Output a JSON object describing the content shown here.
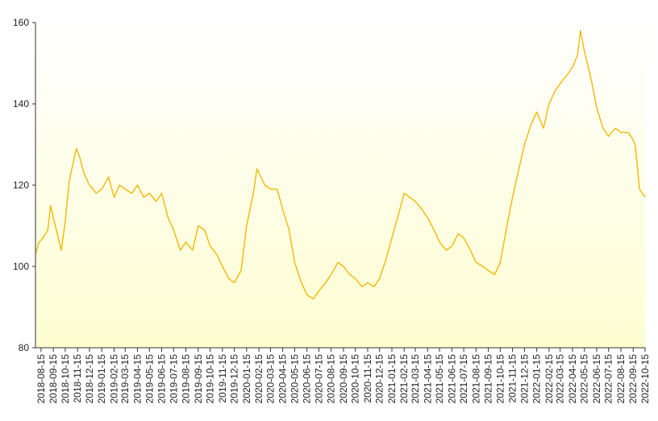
{
  "chart_data": {
    "type": "line",
    "title": "",
    "xlabel": "",
    "ylabel": "",
    "ylim": [
      80,
      160
    ],
    "y_ticks": [
      80,
      100,
      120,
      140,
      160
    ],
    "x_range": [
      "2018-08-01",
      "2022-10-15"
    ],
    "x_tick_labels": [
      "2018-08-15",
      "2018-09-15",
      "2018-10-15",
      "2018-11-15",
      "2018-12-15",
      "2019-01-15",
      "2019-02-15",
      "2019-03-15",
      "2019-04-15",
      "2019-05-15",
      "2019-06-15",
      "2019-07-15",
      "2019-08-15",
      "2019-09-15",
      "2019-10-15",
      "2019-11-15",
      "2019-12-15",
      "2020-01-15",
      "2020-02-15",
      "2020-03-15",
      "2020-04-15",
      "2020-05-15",
      "2020-06-15",
      "2020-07-15",
      "2020-08-15",
      "2020-09-15",
      "2020-10-15",
      "2020-11-15",
      "2020-12-15",
      "2021-01-15",
      "2021-02-15",
      "2021-03-15",
      "2021-04-15",
      "2021-05-15",
      "2021-06-15",
      "2021-07-15",
      "2021-08-15",
      "2021-09-15",
      "2021-10-15",
      "2021-11-15",
      "2021-12-15",
      "2022-01-15",
      "2022-02-15",
      "2022-03-15",
      "2022-04-15",
      "2022-05-15",
      "2022-06-15",
      "2022-07-15",
      "2022-08-15",
      "2022-09-15",
      "2022-10-15"
    ],
    "grid": false,
    "legend": "none",
    "background_gradient": [
      "#ffffff",
      "#fefed2"
    ],
    "series": [
      {
        "color": "#f5b800",
        "x": [
          "2018-08-01",
          "2018-08-10",
          "2018-08-20",
          "2018-09-01",
          "2018-09-08",
          "2018-09-15",
          "2018-09-25",
          "2018-10-05",
          "2018-10-15",
          "2018-10-25",
          "2018-11-05",
          "2018-11-12",
          "2018-11-20",
          "2018-12-01",
          "2018-12-15",
          "2019-01-01",
          "2019-01-15",
          "2019-02-01",
          "2019-02-15",
          "2019-03-01",
          "2019-03-15",
          "2019-04-01",
          "2019-04-15",
          "2019-05-01",
          "2019-05-15",
          "2019-06-01",
          "2019-06-15",
          "2019-07-01",
          "2019-07-15",
          "2019-08-01",
          "2019-08-15",
          "2019-09-01",
          "2019-09-15",
          "2019-10-01",
          "2019-10-15",
          "2019-11-01",
          "2019-11-15",
          "2019-12-01",
          "2019-12-15",
          "2020-01-01",
          "2020-01-15",
          "2020-02-01",
          "2020-02-10",
          "2020-02-20",
          "2020-03-01",
          "2020-03-15",
          "2020-04-01",
          "2020-04-15",
          "2020-05-01",
          "2020-05-15",
          "2020-06-01",
          "2020-06-15",
          "2020-07-01",
          "2020-07-15",
          "2020-08-01",
          "2020-08-15",
          "2020-09-01",
          "2020-09-15",
          "2020-10-01",
          "2020-10-15",
          "2020-11-01",
          "2020-11-15",
          "2020-12-01",
          "2020-12-15",
          "2021-01-01",
          "2021-01-15",
          "2021-02-01",
          "2021-02-15",
          "2021-03-01",
          "2021-03-15",
          "2021-04-01",
          "2021-04-15",
          "2021-05-01",
          "2021-05-15",
          "2021-06-01",
          "2021-06-15",
          "2021-07-01",
          "2021-07-15",
          "2021-08-01",
          "2021-08-15",
          "2021-09-01",
          "2021-09-15",
          "2021-10-01",
          "2021-10-15",
          "2021-11-01",
          "2021-11-15",
          "2021-12-01",
          "2021-12-15",
          "2022-01-01",
          "2022-01-15",
          "2022-02-01",
          "2022-02-15",
          "2022-03-01",
          "2022-03-15",
          "2022-04-01",
          "2022-04-15",
          "2022-04-28",
          "2022-05-05",
          "2022-05-15",
          "2022-06-01",
          "2022-06-15",
          "2022-07-01",
          "2022-07-15",
          "2022-08-01",
          "2022-08-15",
          "2022-09-01",
          "2022-09-10",
          "2022-09-20",
          "2022-10-01",
          "2022-10-15"
        ],
        "y": [
          103,
          106,
          107,
          109,
          115,
          112,
          108,
          104,
          111,
          121,
          126,
          129,
          127,
          123,
          120,
          118,
          119,
          122,
          117,
          120,
          119,
          118,
          120,
          117,
          118,
          116,
          118,
          112,
          109,
          104,
          106,
          104,
          110,
          109,
          105,
          103,
          100,
          97,
          96,
          99,
          110,
          118,
          124,
          122,
          120,
          119,
          119,
          114,
          109,
          101,
          96,
          93,
          92,
          94,
          96,
          98,
          101,
          100,
          98,
          97,
          95,
          96,
          95,
          97,
          102,
          107,
          113,
          118,
          117,
          116,
          114,
          112,
          109,
          106,
          104,
          105,
          108,
          107,
          104,
          101,
          100,
          99,
          98,
          101,
          110,
          117,
          124,
          130,
          135,
          138,
          134,
          140,
          143,
          145,
          147,
          149,
          152,
          158,
          153,
          146,
          139,
          134,
          132,
          134,
          133,
          133,
          132,
          130,
          119,
          117
        ]
      }
    ]
  }
}
